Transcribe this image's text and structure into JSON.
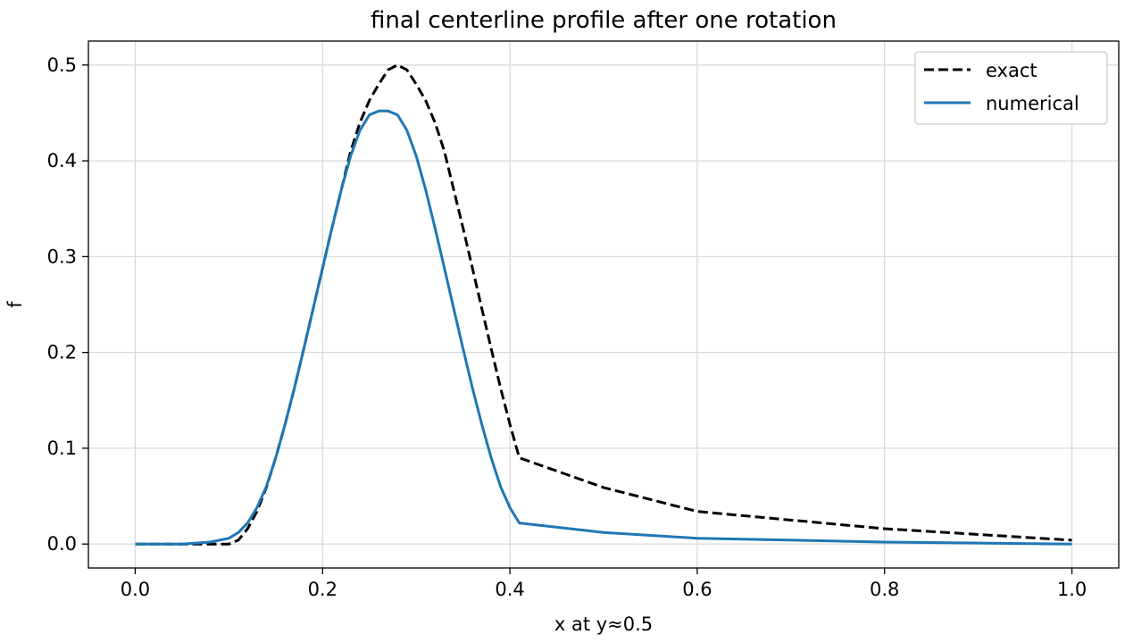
{
  "chart_data": {
    "type": "line",
    "title": "final centerline profile after one rotation",
    "xlabel": "x at y≈0.5",
    "ylabel": "f",
    "xlim": [
      -0.05,
      1.05
    ],
    "ylim": [
      -0.025,
      0.525
    ],
    "x_ticks": [
      "0.0",
      "0.2",
      "0.4",
      "0.6",
      "0.8",
      "1.0"
    ],
    "y_ticks": [
      "0.0",
      "0.1",
      "0.2",
      "0.3",
      "0.4",
      "0.5"
    ],
    "grid": true,
    "legend": "top-right",
    "series": [
      {
        "name": "exact",
        "color": "#000000",
        "style": "dashed",
        "x": [
          0.0,
          0.05,
          0.09,
          0.1,
          0.11,
          0.12,
          0.13,
          0.14,
          0.15,
          0.16,
          0.17,
          0.18,
          0.19,
          0.2,
          0.21,
          0.22,
          0.23,
          0.24,
          0.25,
          0.26,
          0.27,
          0.28,
          0.29,
          0.3,
          0.31,
          0.32,
          0.33,
          0.34,
          0.35,
          0.36,
          0.37,
          0.38,
          0.39,
          0.4,
          0.41,
          0.5,
          0.6,
          0.8,
          1.0
        ],
        "y": [
          0.0,
          0.0,
          0.0,
          0.0,
          0.004,
          0.016,
          0.034,
          0.059,
          0.09,
          0.125,
          0.163,
          0.204,
          0.246,
          0.288,
          0.33,
          0.37,
          0.41,
          0.44,
          0.463,
          0.48,
          0.495,
          0.5,
          0.495,
          0.48,
          0.463,
          0.44,
          0.41,
          0.37,
          0.33,
          0.288,
          0.246,
          0.204,
          0.163,
          0.125,
          0.09,
          0.059,
          0.034,
          0.016,
          0.004
        ]
      },
      {
        "name": "numerical",
        "color": "#1f77b4",
        "style": "solid",
        "x": [
          0.0,
          0.05,
          0.08,
          0.1,
          0.11,
          0.12,
          0.13,
          0.14,
          0.15,
          0.16,
          0.17,
          0.18,
          0.19,
          0.2,
          0.21,
          0.22,
          0.23,
          0.24,
          0.25,
          0.26,
          0.27,
          0.28,
          0.29,
          0.3,
          0.31,
          0.32,
          0.33,
          0.34,
          0.35,
          0.36,
          0.37,
          0.38,
          0.39,
          0.4,
          0.41,
          0.5,
          0.6,
          0.8,
          1.0
        ],
        "y": [
          0.0,
          0.0,
          0.002,
          0.006,
          0.012,
          0.022,
          0.038,
          0.06,
          0.09,
          0.125,
          0.163,
          0.204,
          0.246,
          0.288,
          0.33,
          0.37,
          0.405,
          0.432,
          0.448,
          0.452,
          0.452,
          0.448,
          0.432,
          0.405,
          0.37,
          0.33,
          0.288,
          0.246,
          0.204,
          0.163,
          0.125,
          0.09,
          0.06,
          0.038,
          0.022,
          0.012,
          0.006,
          0.002,
          0.0
        ]
      }
    ]
  }
}
